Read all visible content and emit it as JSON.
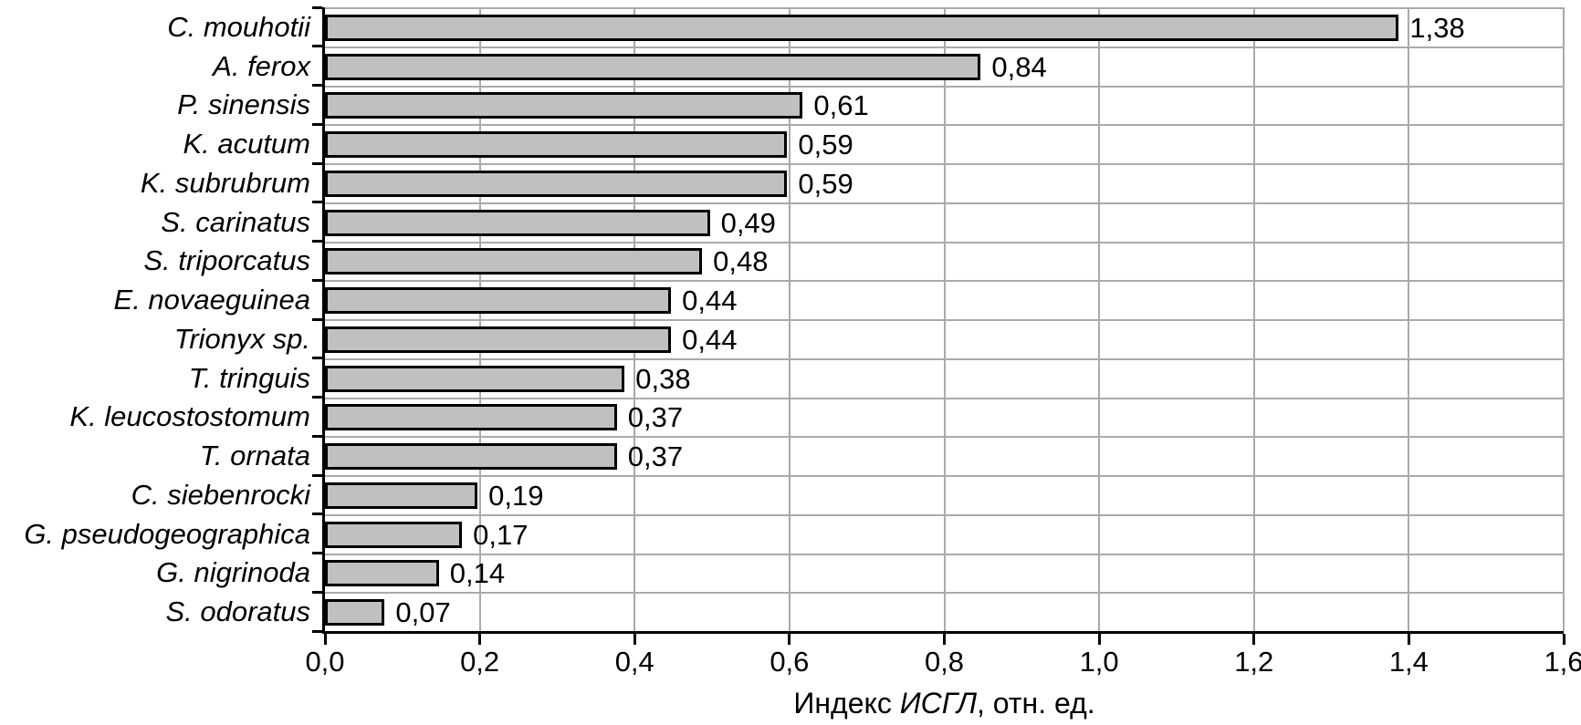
{
  "figure": {
    "background": "#ffffff",
    "bar_fill": "#c0c0c0",
    "bar_border": "#000000",
    "gridline_color": "#aaaaaa",
    "axis_color": "#000000"
  },
  "chart_data": {
    "type": "bar",
    "orientation": "horizontal",
    "title": "",
    "categories": [
      "C. mouhotii",
      "A. ferox",
      "P. sinensis",
      "K. acutum",
      "K. subrubrum",
      "S. carinatus",
      "S. triporcatus",
      "E. novaeguinea",
      "Trionyx sp.",
      "T. tringuis",
      "K. leucostostomum",
      "T. ornata",
      "C. siebenrocki",
      "G. pseudogeographica",
      "G. nigrinoda",
      "S. odoratus"
    ],
    "values": [
      1.38,
      0.84,
      0.61,
      0.59,
      0.59,
      0.49,
      0.48,
      0.44,
      0.44,
      0.38,
      0.37,
      0.37,
      0.19,
      0.17,
      0.14,
      0.07
    ],
    "value_labels": [
      "1,38",
      "0,84",
      "0,61",
      "0,59",
      "0,59",
      "0,49",
      "0,48",
      "0,44",
      "0,44",
      "0,38",
      "0,37",
      "0,37",
      "0,19",
      "0,17",
      "0,14",
      "0,07"
    ],
    "xlabel_prefix": "Индекс ",
    "xlabel_italic": "ИСГЛ",
    "xlabel_suffix": ", отн. ед.",
    "xlim": [
      0,
      1.6
    ],
    "xtick_step": 0.2,
    "xticks": [
      "0,0",
      "0,2",
      "0,4",
      "0,6",
      "0,8",
      "1,0",
      "1,2",
      "1,4",
      "1,6"
    ],
    "grid": true,
    "legend_position": "none"
  }
}
